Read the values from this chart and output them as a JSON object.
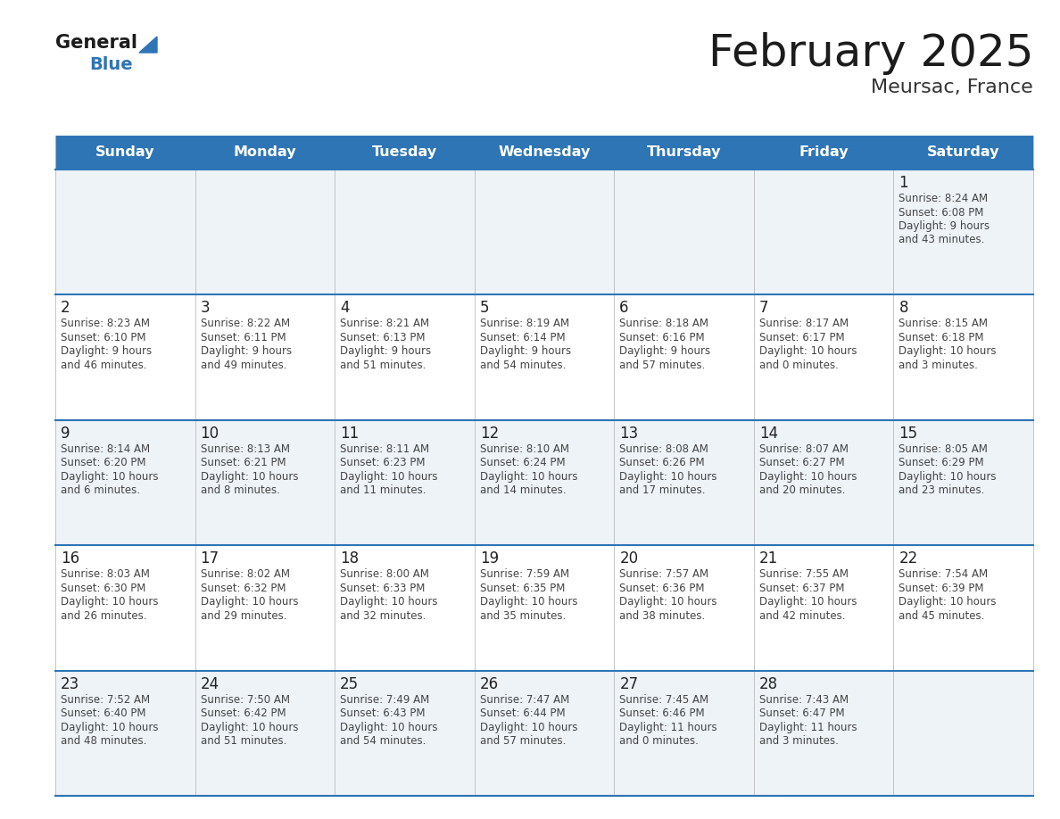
{
  "title": "February 2025",
  "subtitle": "Meursac, France",
  "header_bg": "#2E75B6",
  "header_text_color": "#FFFFFF",
  "border_color": "#2E75B6",
  "cell_bg_light": "#EEF3F8",
  "cell_bg_white": "#FFFFFF",
  "day_number_color": "#222222",
  "info_text_color": "#444444",
  "days_of_week": [
    "Sunday",
    "Monday",
    "Tuesday",
    "Wednesday",
    "Thursday",
    "Friday",
    "Saturday"
  ],
  "calendar_data": [
    [
      null,
      null,
      null,
      null,
      null,
      null,
      {
        "day": "1",
        "sunrise": "8:24 AM",
        "sunset": "6:08 PM",
        "daylight": "9 hours\nand 43 minutes."
      }
    ],
    [
      {
        "day": "2",
        "sunrise": "8:23 AM",
        "sunset": "6:10 PM",
        "daylight": "9 hours\nand 46 minutes."
      },
      {
        "day": "3",
        "sunrise": "8:22 AM",
        "sunset": "6:11 PM",
        "daylight": "9 hours\nand 49 minutes."
      },
      {
        "day": "4",
        "sunrise": "8:21 AM",
        "sunset": "6:13 PM",
        "daylight": "9 hours\nand 51 minutes."
      },
      {
        "day": "5",
        "sunrise": "8:19 AM",
        "sunset": "6:14 PM",
        "daylight": "9 hours\nand 54 minutes."
      },
      {
        "day": "6",
        "sunrise": "8:18 AM",
        "sunset": "6:16 PM",
        "daylight": "9 hours\nand 57 minutes."
      },
      {
        "day": "7",
        "sunrise": "8:17 AM",
        "sunset": "6:17 PM",
        "daylight": "10 hours\nand 0 minutes."
      },
      {
        "day": "8",
        "sunrise": "8:15 AM",
        "sunset": "6:18 PM",
        "daylight": "10 hours\nand 3 minutes."
      }
    ],
    [
      {
        "day": "9",
        "sunrise": "8:14 AM",
        "sunset": "6:20 PM",
        "daylight": "10 hours\nand 6 minutes."
      },
      {
        "day": "10",
        "sunrise": "8:13 AM",
        "sunset": "6:21 PM",
        "daylight": "10 hours\nand 8 minutes."
      },
      {
        "day": "11",
        "sunrise": "8:11 AM",
        "sunset": "6:23 PM",
        "daylight": "10 hours\nand 11 minutes."
      },
      {
        "day": "12",
        "sunrise": "8:10 AM",
        "sunset": "6:24 PM",
        "daylight": "10 hours\nand 14 minutes."
      },
      {
        "day": "13",
        "sunrise": "8:08 AM",
        "sunset": "6:26 PM",
        "daylight": "10 hours\nand 17 minutes."
      },
      {
        "day": "14",
        "sunrise": "8:07 AM",
        "sunset": "6:27 PM",
        "daylight": "10 hours\nand 20 minutes."
      },
      {
        "day": "15",
        "sunrise": "8:05 AM",
        "sunset": "6:29 PM",
        "daylight": "10 hours\nand 23 minutes."
      }
    ],
    [
      {
        "day": "16",
        "sunrise": "8:03 AM",
        "sunset": "6:30 PM",
        "daylight": "10 hours\nand 26 minutes."
      },
      {
        "day": "17",
        "sunrise": "8:02 AM",
        "sunset": "6:32 PM",
        "daylight": "10 hours\nand 29 minutes."
      },
      {
        "day": "18",
        "sunrise": "8:00 AM",
        "sunset": "6:33 PM",
        "daylight": "10 hours\nand 32 minutes."
      },
      {
        "day": "19",
        "sunrise": "7:59 AM",
        "sunset": "6:35 PM",
        "daylight": "10 hours\nand 35 minutes."
      },
      {
        "day": "20",
        "sunrise": "7:57 AM",
        "sunset": "6:36 PM",
        "daylight": "10 hours\nand 38 minutes."
      },
      {
        "day": "21",
        "sunrise": "7:55 AM",
        "sunset": "6:37 PM",
        "daylight": "10 hours\nand 42 minutes."
      },
      {
        "day": "22",
        "sunrise": "7:54 AM",
        "sunset": "6:39 PM",
        "daylight": "10 hours\nand 45 minutes."
      }
    ],
    [
      {
        "day": "23",
        "sunrise": "7:52 AM",
        "sunset": "6:40 PM",
        "daylight": "10 hours\nand 48 minutes."
      },
      {
        "day": "24",
        "sunrise": "7:50 AM",
        "sunset": "6:42 PM",
        "daylight": "10 hours\nand 51 minutes."
      },
      {
        "day": "25",
        "sunrise": "7:49 AM",
        "sunset": "6:43 PM",
        "daylight": "10 hours\nand 54 minutes."
      },
      {
        "day": "26",
        "sunrise": "7:47 AM",
        "sunset": "6:44 PM",
        "daylight": "10 hours\nand 57 minutes."
      },
      {
        "day": "27",
        "sunrise": "7:45 AM",
        "sunset": "6:46 PM",
        "daylight": "11 hours\nand 0 minutes."
      },
      {
        "day": "28",
        "sunrise": "7:43 AM",
        "sunset": "6:47 PM",
        "daylight": "11 hours\nand 3 minutes."
      },
      null
    ]
  ]
}
